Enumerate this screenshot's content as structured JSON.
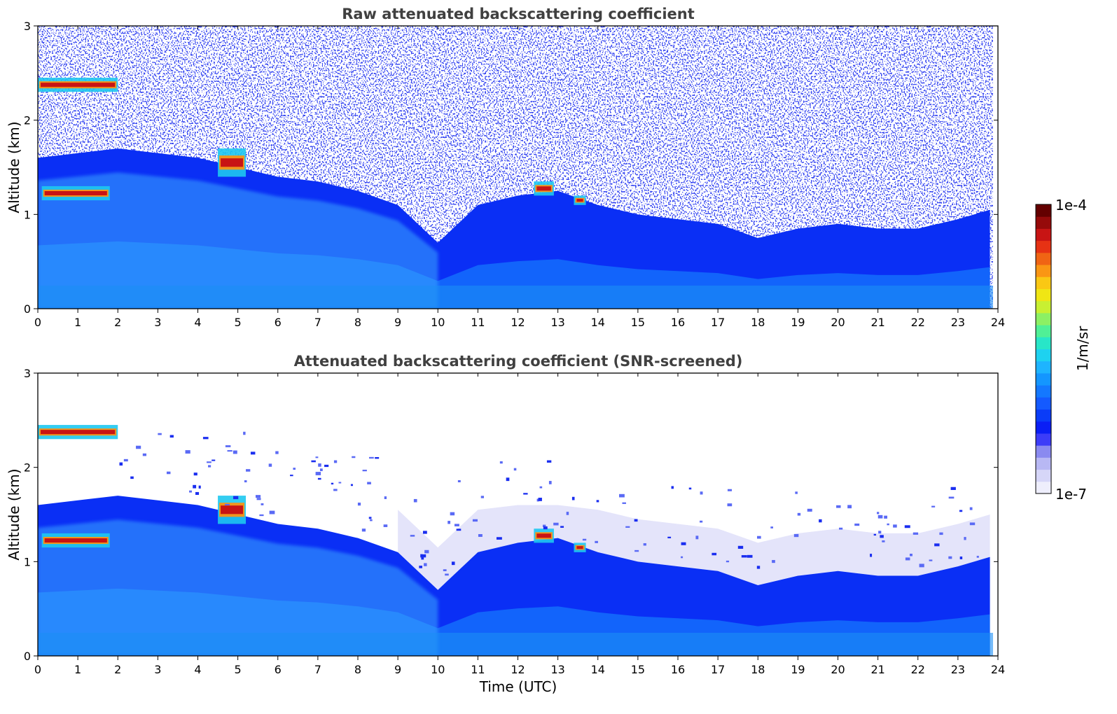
{
  "chart_data": [
    {
      "type": "heatmap",
      "title": "Raw attenuated backscattering coefficient",
      "xlabel": "",
      "ylabel": "Altitude (km)",
      "xlim": [
        0,
        24
      ],
      "ylim": [
        0,
        3
      ],
      "x_ticks": [
        "0",
        "1",
        "2",
        "3",
        "4",
        "5",
        "6",
        "7",
        "8",
        "9",
        "10",
        "11",
        "12",
        "13",
        "14",
        "15",
        "16",
        "17",
        "18",
        "19",
        "20",
        "21",
        "22",
        "23",
        "24"
      ],
      "y_ticks": [
        "0",
        "1",
        "2",
        "3"
      ],
      "boundary_layer_top_km": {
        "time_utc": [
          0,
          1,
          2,
          3,
          4,
          5,
          6,
          7,
          8,
          9,
          10,
          11,
          12,
          13,
          14,
          15,
          16,
          17,
          18,
          19,
          20,
          21,
          22,
          23,
          23.8
        ],
        "altitude_km": [
          1.6,
          1.65,
          1.7,
          1.65,
          1.6,
          1.5,
          1.4,
          1.35,
          1.25,
          1.1,
          0.7,
          1.1,
          1.2,
          1.25,
          1.1,
          1.0,
          0.95,
          0.9,
          0.75,
          0.85,
          0.9,
          0.85,
          0.85,
          0.95,
          1.05
        ]
      },
      "features": [
        {
          "name": "cloud",
          "time_utc": [
            0,
            2
          ],
          "altitude_km": [
            2.3,
            2.45
          ]
        },
        {
          "name": "cloud",
          "time_utc": [
            0.1,
            1.8
          ],
          "altitude_km": [
            1.15,
            1.3
          ]
        },
        {
          "name": "cloud",
          "time_utc": [
            4.5,
            5.2
          ],
          "altitude_km": [
            1.4,
            1.7
          ]
        },
        {
          "name": "cloud",
          "time_utc": [
            12.4,
            12.9
          ],
          "altitude_km": [
            1.2,
            1.35
          ]
        },
        {
          "name": "cloud",
          "time_utc": [
            13.4,
            13.7
          ],
          "altitude_km": [
            1.1,
            1.2
          ]
        }
      ]
    },
    {
      "type": "heatmap",
      "title": "Attenuated backscattering coefficient (SNR-screened)",
      "xlabel": "Time (UTC)",
      "ylabel": "Altitude (km)",
      "xlim": [
        0,
        24
      ],
      "ylim": [
        0,
        3
      ],
      "x_ticks": [
        "0",
        "1",
        "2",
        "3",
        "4",
        "5",
        "6",
        "7",
        "8",
        "9",
        "10",
        "11",
        "12",
        "13",
        "14",
        "15",
        "16",
        "17",
        "18",
        "19",
        "20",
        "21",
        "22",
        "23",
        "24"
      ],
      "y_ticks": [
        "0",
        "1",
        "2",
        "3"
      ],
      "boundary_layer_top_km": {
        "time_utc": [
          0,
          1,
          2,
          3,
          4,
          5,
          6,
          7,
          8,
          9,
          10,
          11,
          12,
          13,
          14,
          15,
          16,
          17,
          18,
          19,
          20,
          21,
          22,
          23,
          23.8
        ],
        "altitude_km": [
          1.6,
          1.65,
          1.7,
          1.65,
          1.6,
          1.5,
          1.4,
          1.35,
          1.25,
          1.1,
          0.7,
          1.1,
          1.2,
          1.25,
          1.1,
          1.0,
          0.95,
          0.9,
          0.75,
          0.85,
          0.9,
          0.85,
          0.85,
          0.95,
          1.05
        ]
      },
      "features": [
        {
          "name": "cloud",
          "time_utc": [
            0,
            2
          ],
          "altitude_km": [
            2.3,
            2.45
          ]
        },
        {
          "name": "cloud",
          "time_utc": [
            0.1,
            1.8
          ],
          "altitude_km": [
            1.15,
            1.3
          ]
        },
        {
          "name": "cloud",
          "time_utc": [
            4.5,
            5.2
          ],
          "altitude_km": [
            1.4,
            1.7
          ]
        },
        {
          "name": "cloud",
          "time_utc": [
            12.4,
            12.9
          ],
          "altitude_km": [
            1.2,
            1.35
          ]
        },
        {
          "name": "cloud",
          "time_utc": [
            13.4,
            13.7
          ],
          "altitude_km": [
            1.1,
            1.2
          ]
        }
      ]
    }
  ],
  "colorbar": {
    "label": "1/m/sr",
    "max_label": "1e-4",
    "min_label": "1e-7",
    "scale": "log",
    "range": [
      1e-07,
      0.0001
    ],
    "colors": [
      "#eeeefc",
      "#d6d6f8",
      "#b8b8f4",
      "#8a8af0",
      "#3c3cf8",
      "#0a1ef5",
      "#0a3cf8",
      "#145aff",
      "#1478ff",
      "#1496ff",
      "#1eb4ff",
      "#1ed2f0",
      "#28e6c8",
      "#50f096",
      "#8cf064",
      "#c8f032",
      "#f0e614",
      "#fac814",
      "#fa9614",
      "#f06414",
      "#e63214",
      "#c81414",
      "#960a0a",
      "#640000"
    ]
  }
}
